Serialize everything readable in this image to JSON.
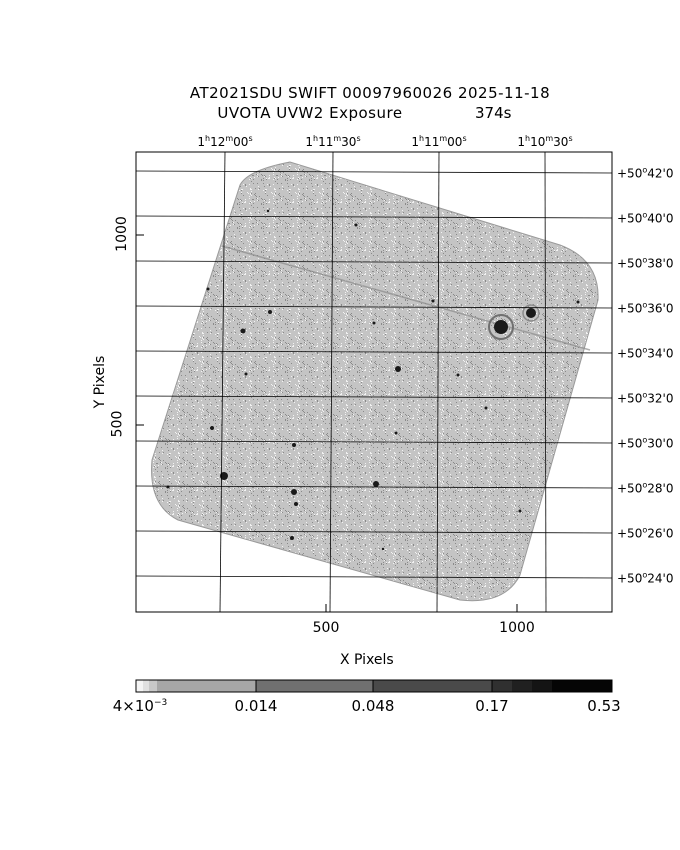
{
  "title": {
    "line1": "AT2021SDU SWIFT 00097960026 2025-11-18",
    "line2": "UVOTA UVW2 Exposure",
    "exposure": "374s"
  },
  "axes": {
    "xlabel": "X Pixels",
    "ylabel": "Y Pixels",
    "x_ticks": [
      "500",
      "1000"
    ],
    "y_ticks": [
      "1000",
      "500"
    ],
    "ra_ticks": [
      {
        "h": "1",
        "m": "12",
        "s": "00"
      },
      {
        "h": "1",
        "m": "11",
        "s": "30"
      },
      {
        "h": "1",
        "m": "11",
        "s": "00"
      },
      {
        "h": "1",
        "m": "10",
        "s": "30"
      }
    ],
    "dec_ticks": [
      {
        "deg": "+50",
        "min": "42"
      },
      {
        "deg": "+50",
        "min": "40"
      },
      {
        "deg": "+50",
        "min": "38"
      },
      {
        "deg": "+50",
        "min": "36"
      },
      {
        "deg": "+50",
        "min": "34"
      },
      {
        "deg": "+50",
        "min": "32"
      },
      {
        "deg": "+50",
        "min": "30"
      },
      {
        "deg": "+50",
        "min": "28"
      },
      {
        "deg": "+50",
        "min": "26"
      },
      {
        "deg": "+50",
        "min": "24"
      }
    ]
  },
  "colorbar": {
    "labels": [
      "4×10",
      "0.014",
      "0.048",
      "0.17",
      "0.53"
    ],
    "first_exponent": "−3"
  },
  "colors": {
    "image_gray": "#9a9a9a",
    "frame": "#000000"
  }
}
